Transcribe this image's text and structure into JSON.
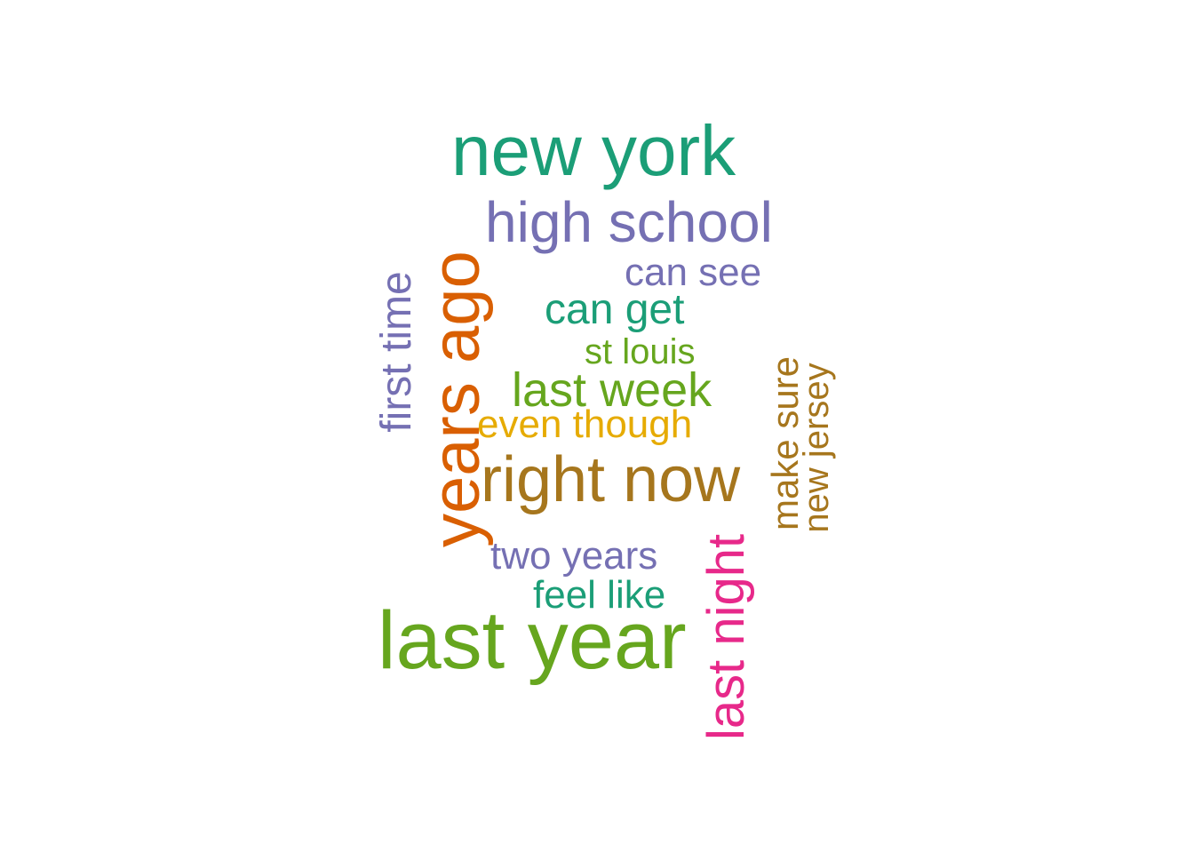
{
  "words": [
    {
      "text": "new york",
      "color": "#1b9e77",
      "orientation": "horizontal"
    },
    {
      "text": "high school",
      "color": "#7570b3",
      "orientation": "horizontal"
    },
    {
      "text": "can see",
      "color": "#7570b3",
      "orientation": "horizontal"
    },
    {
      "text": "can get",
      "color": "#1b9e77",
      "orientation": "horizontal"
    },
    {
      "text": "st louis",
      "color": "#66a61e",
      "orientation": "horizontal"
    },
    {
      "text": "last week",
      "color": "#66a61e",
      "orientation": "horizontal"
    },
    {
      "text": "even though",
      "color": "#e6ab02",
      "orientation": "horizontal"
    },
    {
      "text": "right now",
      "color": "#a6761d",
      "orientation": "horizontal"
    },
    {
      "text": "two years",
      "color": "#7570b3",
      "orientation": "horizontal"
    },
    {
      "text": "feel like",
      "color": "#1b9e77",
      "orientation": "horizontal"
    },
    {
      "text": "last year",
      "color": "#66a61e",
      "orientation": "horizontal"
    },
    {
      "text": "first time",
      "color": "#7570b3",
      "orientation": "vertical"
    },
    {
      "text": "years ago",
      "color": "#d95f02",
      "orientation": "vertical"
    },
    {
      "text": "make sure",
      "color": "#a6761d",
      "orientation": "vertical"
    },
    {
      "text": "new jersey",
      "color": "#a6761d",
      "orientation": "vertical"
    },
    {
      "text": "last night",
      "color": "#e7298a",
      "orientation": "vertical"
    }
  ]
}
